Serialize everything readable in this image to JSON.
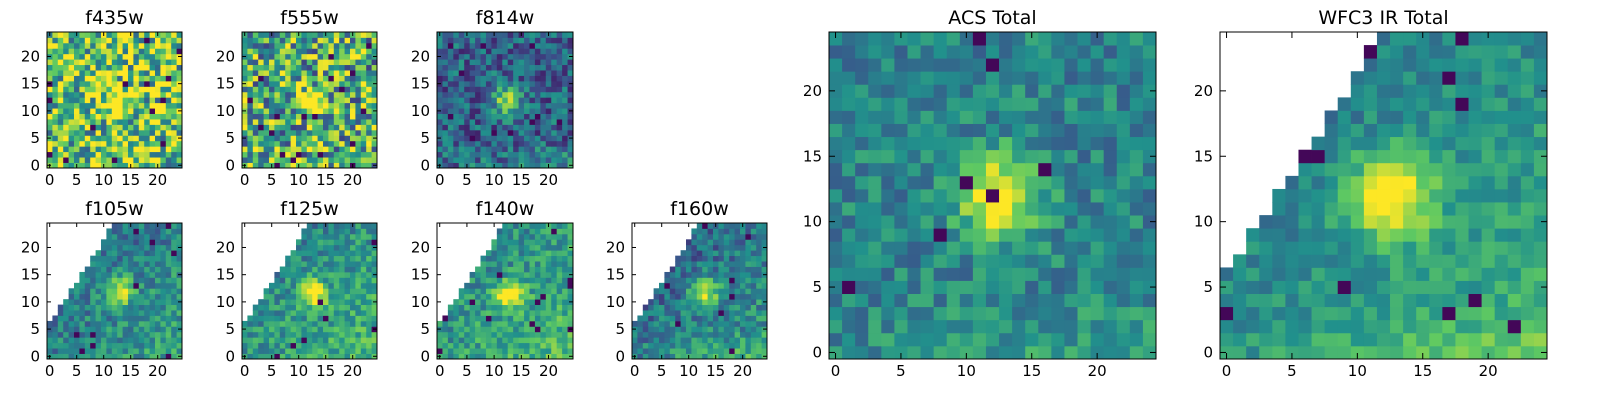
{
  "figure": {
    "background": "#ffffff",
    "colormap": "viridis",
    "colormap_stops": [
      "#440154",
      "#3b528b",
      "#21918c",
      "#5ec962",
      "#fde725"
    ]
  },
  "chart_data": [
    {
      "id": "f435w",
      "type": "heatmap",
      "title": "f435w",
      "grid_size": 25,
      "xticks": [
        "0",
        "5",
        "10",
        "15",
        "20"
      ],
      "yticks": [
        "0",
        "5",
        "10",
        "15",
        "20"
      ],
      "xlim": [
        -0.5,
        24.5
      ],
      "ylim": [
        -0.5,
        24.5
      ],
      "mask": "none",
      "peak": [
        12.5,
        12
      ],
      "noise": 0.42,
      "base": 0.72
    },
    {
      "id": "f555w",
      "type": "heatmap",
      "title": "f555w",
      "grid_size": 25,
      "xticks": [
        "0",
        "5",
        "10",
        "15",
        "20"
      ],
      "yticks": [
        "0",
        "5",
        "10",
        "15",
        "20"
      ],
      "xlim": [
        -0.5,
        24.5
      ],
      "ylim": [
        -0.5,
        24.5
      ],
      "mask": "none",
      "peak": [
        12.5,
        11.5
      ],
      "noise": 0.42,
      "base": 0.62
    },
    {
      "id": "f814w",
      "type": "heatmap",
      "title": "f814w",
      "grid_size": 25,
      "xticks": [
        "0",
        "5",
        "10",
        "15",
        "20"
      ],
      "yticks": [
        "0",
        "5",
        "10",
        "15",
        "20"
      ],
      "xlim": [
        -0.5,
        24.5
      ],
      "ylim": [
        -0.5,
        24.5
      ],
      "mask": "none",
      "peak": [
        12.5,
        12
      ],
      "noise": 0.22,
      "base": 0.32
    },
    {
      "id": "f105w",
      "type": "heatmap",
      "title": "f105w",
      "grid_size": 25,
      "xticks": [
        "0",
        "5",
        "10",
        "15",
        "20"
      ],
      "yticks": [
        "0",
        "5",
        "10",
        "15",
        "20"
      ],
      "xlim": [
        -0.5,
        24.5
      ],
      "ylim": [
        -0.5,
        24.5
      ],
      "mask": "upper-left",
      "peak": [
        13,
        12
      ],
      "noise": 0.18,
      "base": 0.4
    },
    {
      "id": "f125w",
      "type": "heatmap",
      "title": "f125w",
      "grid_size": 25,
      "xticks": [
        "0",
        "5",
        "10",
        "15",
        "20"
      ],
      "yticks": [
        "0",
        "5",
        "10",
        "15",
        "20"
      ],
      "xlim": [
        -0.5,
        24.5
      ],
      "ylim": [
        -0.5,
        24.5
      ],
      "mask": "upper-left",
      "peak": [
        12.5,
        11.5
      ],
      "noise": 0.18,
      "base": 0.48
    },
    {
      "id": "f140w",
      "type": "heatmap",
      "title": "f140w",
      "grid_size": 25,
      "xticks": [
        "0",
        "5",
        "10",
        "15",
        "20"
      ],
      "yticks": [
        "0",
        "5",
        "10",
        "15",
        "20"
      ],
      "xlim": [
        -0.5,
        24.5
      ],
      "ylim": [
        -0.5,
        24.5
      ],
      "mask": "upper-left",
      "peak": [
        12.5,
        11.5
      ],
      "noise": 0.18,
      "base": 0.5
    },
    {
      "id": "f160w",
      "type": "heatmap",
      "title": "f160w",
      "grid_size": 25,
      "xticks": [
        "0",
        "5",
        "10",
        "15",
        "20"
      ],
      "yticks": [
        "0",
        "5",
        "10",
        "15",
        "20"
      ],
      "xlim": [
        -0.5,
        24.5
      ],
      "ylim": [
        -0.5,
        24.5
      ],
      "mask": "upper-left",
      "peak": [
        13,
        12
      ],
      "noise": 0.18,
      "base": 0.36
    },
    {
      "id": "acs-total",
      "type": "heatmap",
      "title": "ACS Total",
      "grid_size": 25,
      "xticks": [
        "0",
        "5",
        "10",
        "15",
        "20"
      ],
      "yticks": [
        "0",
        "5",
        "10",
        "15",
        "20"
      ],
      "xlim": [
        -0.5,
        24.5
      ],
      "ylim": [
        -0.5,
        24.5
      ],
      "mask": "none",
      "peak": [
        12.5,
        12
      ],
      "noise": 0.16,
      "base": 0.45
    },
    {
      "id": "wfc3-ir-total",
      "type": "heatmap",
      "title": "WFC3 IR Total",
      "grid_size": 25,
      "xticks": [
        "0",
        "5",
        "10",
        "15",
        "20"
      ],
      "yticks": [
        "0",
        "5",
        "10",
        "15",
        "20"
      ],
      "xlim": [
        -0.5,
        24.5
      ],
      "ylim": [
        -0.5,
        24.5
      ],
      "mask": "upper-left",
      "peak": [
        12.5,
        12
      ],
      "noise": 0.12,
      "base": 0.45
    }
  ]
}
